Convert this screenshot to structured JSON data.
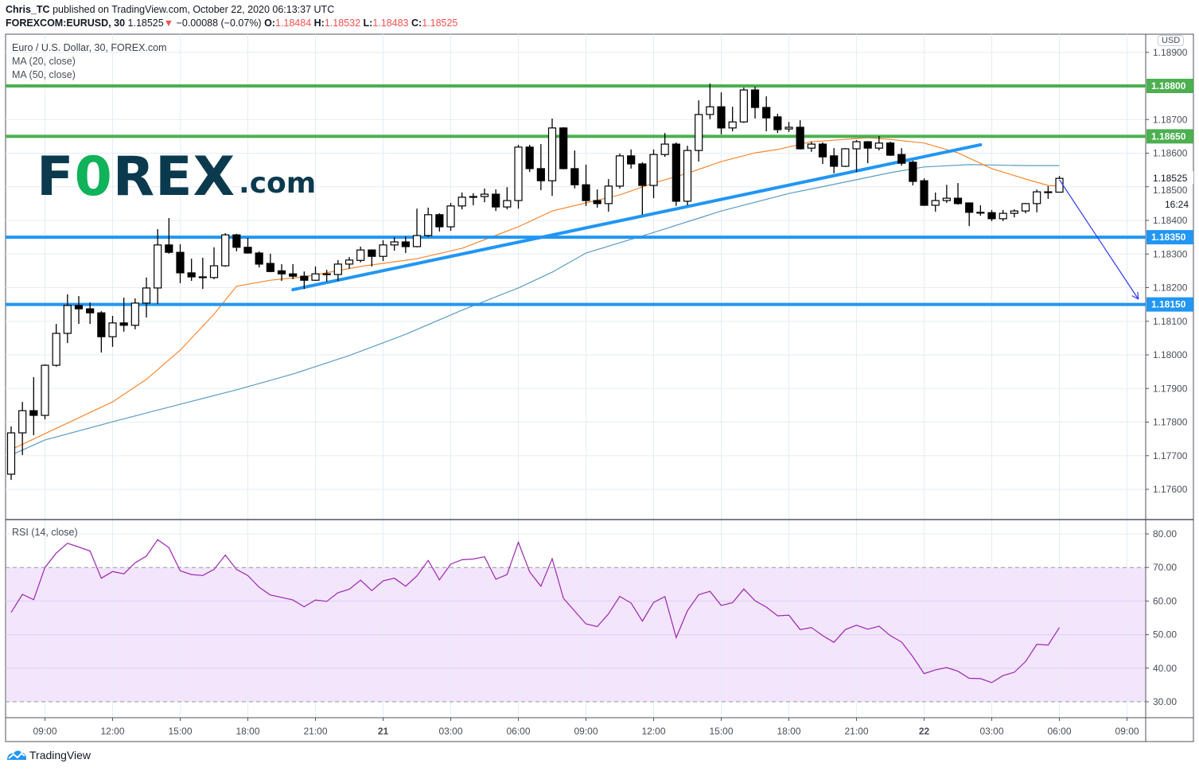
{
  "header": {
    "publisher": "Chris_TC",
    "published_text": "published on TradingView.com, October 22, 2020 06:13:37 UTC",
    "symbol": "FOREXCOM:EURUSD, 30",
    "last": "1.18525",
    "change": "−0.00088 (−0.07%)",
    "change_direction": "down",
    "o_label": "O:",
    "o": "1.18484",
    "h_label": "H:",
    "h": "1.18532",
    "l_label": "L:",
    "l": "1.18483",
    "c_label": "C:",
    "c": "1.18525"
  },
  "legend": {
    "title": "Euro / U.S. Dollar, 30, FOREX.com",
    "ma20": "MA (20, close)",
    "ma50": "MA (50, close)",
    "rsi": "RSI (14, close)"
  },
  "logo": {
    "part1": "F",
    "part2": "0",
    "part3": "REX",
    "part4": ".com"
  },
  "currency_badge": "USD",
  "footer": {
    "brand": "TradingView"
  },
  "colors": {
    "up_body": "#ffffff",
    "down_body": "#000000",
    "wick": "#000000",
    "ma20": "#f7882f",
    "ma50": "#5b9cc2",
    "resistance": "#4caf50",
    "support": "#2196f3",
    "trendline": "#2196f3",
    "arrow": "#2e3bf5",
    "rsi_line": "#9c27b0",
    "rsi_band": "#f3e5fc",
    "price_red": "#ef5350",
    "grid": "#e5edf3"
  },
  "chart_data": {
    "type": "candlestick",
    "interval_minutes": 30,
    "start": "2020-10-20 07:30",
    "ohlc_order": [
      "open",
      "high",
      "low",
      "close"
    ],
    "candles": [
      [
        1.17645,
        1.17787,
        1.17628,
        1.17768
      ],
      [
        1.17768,
        1.1786,
        1.17702,
        1.17834
      ],
      [
        1.17834,
        1.17934,
        1.17761,
        1.1782
      ],
      [
        1.1782,
        1.17972,
        1.17808,
        1.17969
      ],
      [
        1.17969,
        1.18092,
        1.17965,
        1.18064
      ],
      [
        1.18064,
        1.1818,
        1.18035,
        1.18147
      ],
      [
        1.18147,
        1.18175,
        1.18092,
        1.18137
      ],
      [
        1.18137,
        1.18156,
        1.18092,
        1.18125
      ],
      [
        1.18125,
        1.1813,
        1.18007,
        1.18054
      ],
      [
        1.18054,
        1.18116,
        1.18024,
        1.18095
      ],
      [
        1.18095,
        1.1817,
        1.18069,
        1.18088
      ],
      [
        1.18088,
        1.18168,
        1.18076,
        1.18154
      ],
      [
        1.18154,
        1.1823,
        1.18111,
        1.18199
      ],
      [
        1.18199,
        1.18374,
        1.18151,
        1.18327
      ],
      [
        1.18327,
        1.18407,
        1.18301,
        1.18305
      ],
      [
        1.18305,
        1.18329,
        1.18213,
        1.18244
      ],
      [
        1.18244,
        1.18286,
        1.1822,
        1.18232
      ],
      [
        1.18232,
        1.18289,
        1.18196,
        1.1823
      ],
      [
        1.1823,
        1.1832,
        1.18225,
        1.18265
      ],
      [
        1.18265,
        1.18362,
        1.18262,
        1.18357
      ],
      [
        1.18357,
        1.1836,
        1.18308,
        1.1832
      ],
      [
        1.1832,
        1.18348,
        1.18301,
        1.18303
      ],
      [
        1.18303,
        1.18308,
        1.1826,
        1.1827
      ],
      [
        1.18272,
        1.18301,
        1.18246,
        1.18248
      ],
      [
        1.1825,
        1.1827,
        1.1822,
        1.18241
      ],
      [
        1.18241,
        1.1827,
        1.18225,
        1.18234
      ],
      [
        1.18234,
        1.18248,
        1.18196,
        1.18222
      ],
      [
        1.18222,
        1.18263,
        1.1822,
        1.18241
      ],
      [
        1.18241,
        1.18253,
        1.18218,
        1.18239
      ],
      [
        1.18239,
        1.18282,
        1.1822,
        1.1827
      ],
      [
        1.1827,
        1.18291,
        1.18256,
        1.18282
      ],
      [
        1.18281,
        1.18322,
        1.18275,
        1.18312
      ],
      [
        1.18312,
        1.18314,
        1.18263,
        1.18293
      ],
      [
        1.18293,
        1.18341,
        1.18279,
        1.18327
      ],
      [
        1.18327,
        1.1835,
        1.1831,
        1.18336
      ],
      [
        1.18336,
        1.18352,
        1.18303,
        1.18322
      ],
      [
        1.18322,
        1.18435,
        1.1832,
        1.18355
      ],
      [
        1.18355,
        1.18438,
        1.1835,
        1.18417
      ],
      [
        1.18417,
        1.18421,
        1.18367,
        1.18381
      ],
      [
        1.18381,
        1.18452,
        1.18369,
        1.18443
      ],
      [
        1.18443,
        1.18483,
        1.18433,
        1.18469
      ],
      [
        1.18469,
        1.18481,
        1.18445,
        1.18471
      ],
      [
        1.18471,
        1.18495,
        1.18454,
        1.18478
      ],
      [
        1.18478,
        1.18492,
        1.18428,
        1.1844
      ],
      [
        1.1844,
        1.18499,
        1.18433,
        1.18459
      ],
      [
        1.18459,
        1.18625,
        1.18435,
        1.18618
      ],
      [
        1.18618,
        1.18625,
        1.18544,
        1.18554
      ],
      [
        1.18554,
        1.18627,
        1.1849,
        1.18518
      ],
      [
        1.18518,
        1.18703,
        1.18473,
        1.18675
      ],
      [
        1.18675,
        1.18677,
        1.18552,
        1.18554
      ],
      [
        1.18554,
        1.18608,
        1.18495,
        1.18506
      ],
      [
        1.18506,
        1.18566,
        1.18443,
        1.18459
      ],
      [
        1.18459,
        1.18492,
        1.18438,
        1.1845
      ],
      [
        1.1845,
        1.18523,
        1.18426,
        1.18502
      ],
      [
        1.18502,
        1.18599,
        1.18495,
        1.18592
      ],
      [
        1.18592,
        1.18611,
        1.18554,
        1.18568
      ],
      [
        1.18568,
        1.18573,
        1.18417,
        1.18504
      ],
      [
        1.18504,
        1.18611,
        1.18466,
        1.18596
      ],
      [
        1.18596,
        1.1866,
        1.18589,
        1.18627
      ],
      [
        1.18627,
        1.18632,
        1.18443,
        1.18457
      ],
      [
        1.18457,
        1.18622,
        1.18445,
        1.18608
      ],
      [
        1.18608,
        1.18757,
        1.18575,
        1.18715
      ],
      [
        1.18715,
        1.18807,
        1.18701,
        1.18738
      ],
      [
        1.18738,
        1.18781,
        1.18656,
        1.18675
      ],
      [
        1.18675,
        1.18738,
        1.18665,
        1.18693
      ],
      [
        1.18693,
        1.18795,
        1.1869,
        1.18788
      ],
      [
        1.18788,
        1.18798,
        1.18703,
        1.18736
      ],
      [
        1.18736,
        1.18769,
        1.18665,
        1.18705
      ],
      [
        1.18708,
        1.18717,
        1.1866,
        1.1867
      ],
      [
        1.18672,
        1.18693,
        1.18663,
        1.18677
      ],
      [
        1.18677,
        1.18698,
        1.18611,
        1.18613
      ],
      [
        1.18615,
        1.18634,
        1.18604,
        1.18627
      ],
      [
        1.18627,
        1.18632,
        1.18568,
        1.18589
      ],
      [
        1.18592,
        1.18615,
        1.1854,
        1.18561
      ],
      [
        1.18561,
        1.18615,
        1.18559,
        1.18613
      ],
      [
        1.18613,
        1.18639,
        1.18544,
        1.18634
      ],
      [
        1.18634,
        1.18636,
        1.1857,
        1.18615
      ],
      [
        1.18615,
        1.18651,
        1.18608,
        1.1863
      ],
      [
        1.1863,
        1.18634,
        1.18592,
        1.18594
      ],
      [
        1.18596,
        1.18615,
        1.18563,
        1.1857
      ],
      [
        1.18573,
        1.18578,
        1.18504,
        1.18516
      ],
      [
        1.18518,
        1.18525,
        1.18443,
        1.18445
      ],
      [
        1.18445,
        1.18483,
        1.18426,
        1.18459
      ],
      [
        1.18459,
        1.18506,
        1.18452,
        1.18466
      ],
      [
        1.18466,
        1.18511,
        1.18447,
        1.1845
      ],
      [
        1.18452,
        1.18452,
        1.18383,
        1.18424
      ],
      [
        1.18424,
        1.18445,
        1.18414,
        1.18423
      ],
      [
        1.18423,
        1.18431,
        1.18398,
        1.18405
      ],
      [
        1.18405,
        1.18431,
        1.18398,
        1.18421
      ],
      [
        1.18421,
        1.18433,
        1.18409,
        1.18428
      ],
      [
        1.18428,
        1.18452,
        1.18421,
        1.1845
      ],
      [
        1.1845,
        1.18492,
        1.18424,
        1.18485
      ],
      [
        1.18485,
        1.18502,
        1.18464,
        1.18484
      ],
      [
        1.18484,
        1.18532,
        1.18483,
        1.18525
      ]
    ],
    "ma20": [
      [
        "2020-10-20 07:30",
        1.17718
      ],
      [
        "2020-10-20 12:00",
        1.1786
      ],
      [
        "2020-10-20 13:30",
        1.17927
      ],
      [
        "2020-10-20 15:00",
        1.18014
      ],
      [
        "2020-10-20 16:30",
        1.18121
      ],
      [
        "2020-10-20 17:30",
        1.18204
      ],
      [
        "2020-10-20 19:00",
        1.18222
      ],
      [
        "2020-10-20 20:30",
        1.18232
      ],
      [
        "2020-10-20 23:00",
        1.18263
      ],
      [
        "2020-10-21 01:30",
        1.18286
      ],
      [
        "2020-10-21 03:30",
        1.18317
      ],
      [
        "2020-10-21 06:00",
        1.18381
      ],
      [
        "2020-10-21 07:30",
        1.18428
      ],
      [
        "2020-10-21 09:00",
        1.18452
      ],
      [
        "2020-10-21 10:30",
        1.18476
      ],
      [
        "2020-10-21 12:00",
        1.18511
      ],
      [
        "2020-10-21 13:30",
        1.1854
      ],
      [
        "2020-10-21 15:00",
        1.18575
      ],
      [
        "2020-10-21 16:30",
        1.18601
      ],
      [
        "2020-10-21 17:30",
        1.18611
      ],
      [
        "2020-10-21 19:00",
        1.18634
      ],
      [
        "2020-10-21 20:30",
        1.18641
      ],
      [
        "2020-10-21 21:30",
        1.18646
      ],
      [
        "2020-10-21 22:30",
        1.18641
      ],
      [
        "2020-10-22 00:00",
        1.1863
      ],
      [
        "2020-10-22 01:30",
        1.18601
      ],
      [
        "2020-10-22 03:00",
        1.18554
      ],
      [
        "2020-10-22 04:30",
        1.18523
      ],
      [
        "2020-10-22 05:30",
        1.18504
      ],
      [
        "2020-10-22 06:00",
        1.18502
      ]
    ],
    "ma50": [
      [
        "2020-10-20 07:30",
        1.17702
      ],
      [
        "2020-10-20 09:00",
        1.17747
      ],
      [
        "2020-10-20 12:00",
        1.17801
      ],
      [
        "2020-10-20 15:00",
        1.17853
      ],
      [
        "2020-10-20 17:30",
        1.17896
      ],
      [
        "2020-10-20 20:00",
        1.17943
      ],
      [
        "2020-10-20 22:30",
        1.17998
      ],
      [
        "2020-10-21 01:00",
        1.18061
      ],
      [
        "2020-10-21 03:30",
        1.18133
      ],
      [
        "2020-10-21 06:00",
        1.18199
      ],
      [
        "2020-10-21 07:30",
        1.18246
      ],
      [
        "2020-10-21 09:00",
        1.18303
      ],
      [
        "2020-10-21 12:00",
        1.18364
      ],
      [
        "2020-10-21 15:00",
        1.18428
      ],
      [
        "2020-10-21 18:00",
        1.1848
      ],
      [
        "2020-10-21 21:00",
        1.18521
      ],
      [
        "2020-10-21 22:30",
        1.18542
      ],
      [
        "2020-10-22 00:00",
        1.18559
      ],
      [
        "2020-10-22 02:00",
        1.18566
      ],
      [
        "2020-10-22 04:30",
        1.18563
      ],
      [
        "2020-10-22 06:00",
        1.18563
      ]
    ],
    "horizontal_levels": [
      {
        "price": 1.188,
        "label": "1.18800",
        "kind": "resistance"
      },
      {
        "price": 1.1865,
        "label": "1.18650",
        "kind": "resistance"
      },
      {
        "price": 1.1835,
        "label": "1.18350",
        "kind": "support"
      },
      {
        "price": 1.1815,
        "label": "1.18150",
        "kind": "support"
      }
    ],
    "trendline": {
      "from": [
        "2020-10-20 20:00",
        1.18194
      ],
      "to": [
        "2020-10-22 02:30",
        1.18625
      ]
    },
    "projection_arrow": {
      "from": [
        "2020-10-22 06:00",
        1.18521
      ],
      "to": [
        "2020-10-22 09:30",
        1.18166
      ]
    },
    "current_price": {
      "label": "1.18525",
      "price": 1.18525,
      "countdown": "16:24"
    },
    "price_axis": {
      "range": [
        1.175,
        1.19
      ],
      "ticks": [
        "1.17600",
        "1.17700",
        "1.17800",
        "1.17900",
        "1.18000",
        "1.18100",
        "1.18200",
        "1.18300",
        "1.18400",
        "1.18500",
        "1.18600",
        "1.18700",
        "1.18900"
      ]
    },
    "time_axis": [
      {
        "label": "09:00",
        "t": "2020-10-20 09:00"
      },
      {
        "label": "12:00",
        "t": "2020-10-20 12:00"
      },
      {
        "label": "15:00",
        "t": "2020-10-20 15:00"
      },
      {
        "label": "18:00",
        "t": "2020-10-20 18:00"
      },
      {
        "label": "21:00",
        "t": "2020-10-20 21:00"
      },
      {
        "label": "21",
        "t": "2020-10-21 00:00",
        "bold": true
      },
      {
        "label": "03:00",
        "t": "2020-10-21 03:00"
      },
      {
        "label": "06:00",
        "t": "2020-10-21 06:00"
      },
      {
        "label": "09:00",
        "t": "2020-10-21 09:00"
      },
      {
        "label": "12:00",
        "t": "2020-10-21 12:00"
      },
      {
        "label": "15:00",
        "t": "2020-10-21 15:00"
      },
      {
        "label": "18:00",
        "t": "2020-10-21 18:00"
      },
      {
        "label": "21:00",
        "t": "2020-10-21 21:00"
      },
      {
        "label": "22",
        "t": "2020-10-22 00:00",
        "bold": true
      },
      {
        "label": "03:00",
        "t": "2020-10-22 03:00"
      },
      {
        "label": "06:00",
        "t": "2020-10-22 06:00"
      },
      {
        "label": "09:00",
        "t": "2020-10-22 09:00"
      }
    ],
    "rsi": {
      "period": 14,
      "overbought": 70,
      "oversold": 30,
      "ticks": [
        "80.00",
        "70.00",
        "60.00",
        "50.00",
        "40.00",
        "30.00"
      ],
      "values": [
        56.6,
        62.0,
        60.4,
        70.0,
        74.3,
        77.2,
        76.1,
        74.9,
        66.8,
        68.8,
        68.1,
        71.4,
        73.4,
        78.3,
        75.9,
        69.0,
        67.9,
        67.6,
        69.4,
        73.7,
        69.4,
        67.6,
        64.1,
        61.8,
        61.1,
        60.3,
        58.3,
        60.3,
        59.9,
        62.5,
        63.5,
        66.2,
        63.1,
        66.0,
        66.8,
        64.4,
        67.5,
        72.1,
        66.3,
        71.0,
        72.3,
        72.5,
        73.2,
        66.5,
        67.9,
        77.5,
        68.7,
        64.4,
        72.6,
        60.8,
        57.0,
        53.2,
        52.4,
        56.2,
        61.4,
        59.4,
        54.0,
        59.6,
        61.3,
        49.1,
        57.1,
        61.9,
        62.9,
        58.7,
        59.5,
        63.6,
        60.1,
        58.2,
        55.6,
        55.8,
        51.5,
        52.1,
        49.7,
        47.7,
        51.5,
        52.8,
        51.6,
        52.5,
        49.7,
        47.8,
        43.4,
        38.4,
        39.5,
        40.2,
        39.1,
        37.0,
        36.9,
        35.7,
        37.8,
        38.8,
        42.0,
        47.1,
        46.9,
        52.1
      ]
    }
  }
}
